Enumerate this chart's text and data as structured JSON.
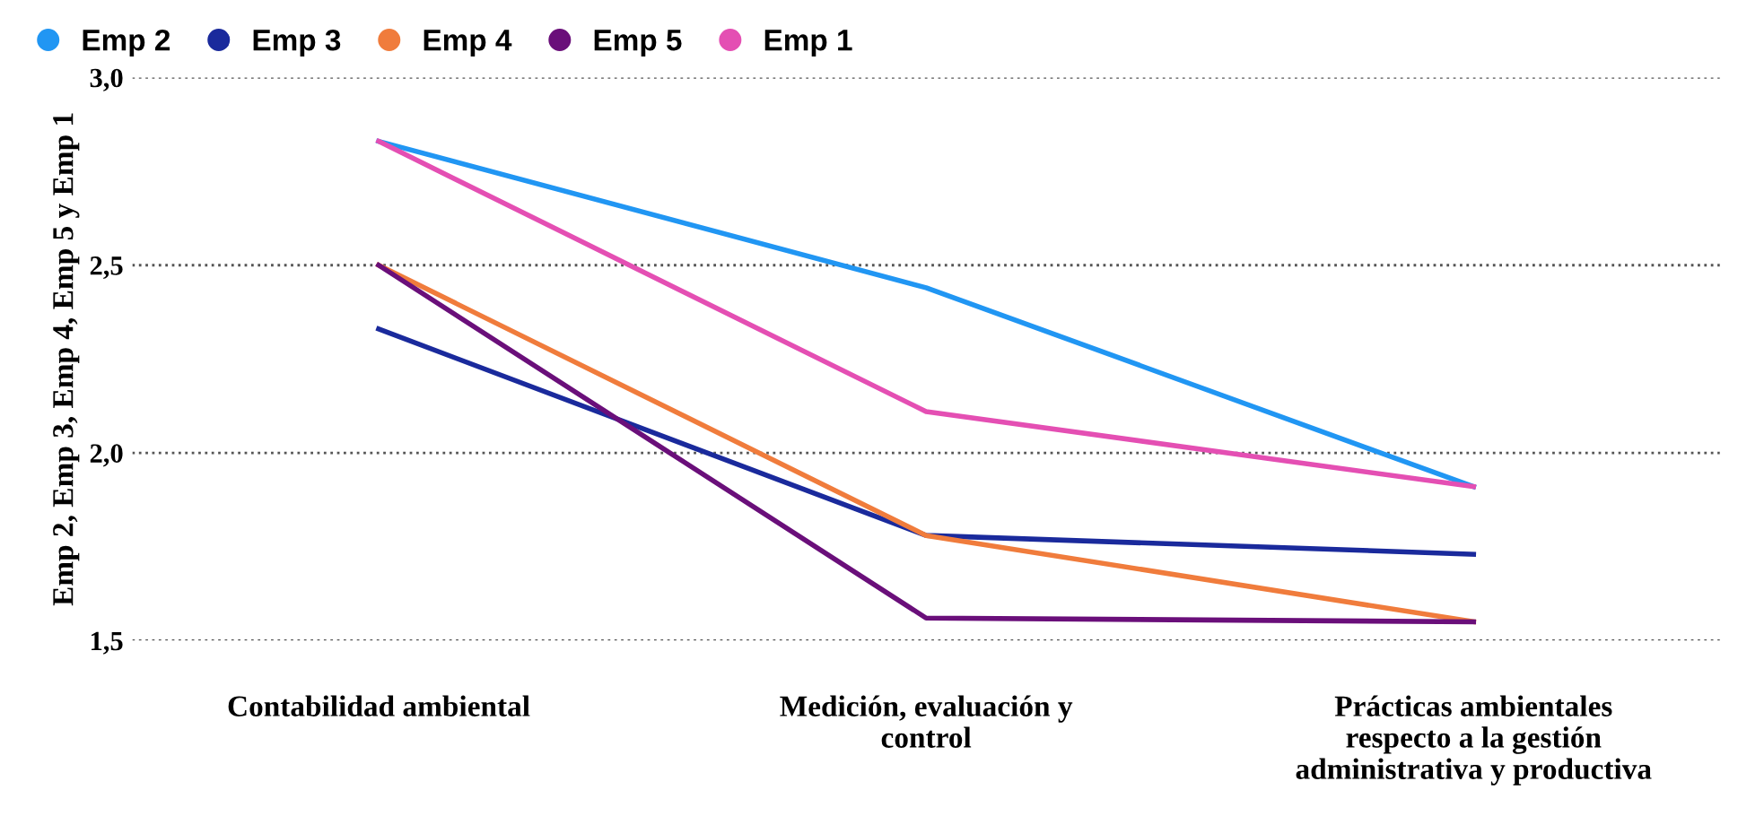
{
  "chart_data": {
    "type": "line",
    "ylabel": "Emp 2, Emp 3, Emp 4, Emp 5 y Emp 1",
    "categories": [
      "Contabilidad ambiental",
      "Medición, evaluación y\ncontrol",
      "Prácticas ambientales\nrespecto a la gestión\nadministrativa y productiva"
    ],
    "series": [
      {
        "name": "Emp 2",
        "color": "#2196f3",
        "values": [
          2.83,
          2.44,
          1.91
        ]
      },
      {
        "name": "Emp 3",
        "color": "#1a2a9c",
        "values": [
          2.33,
          1.78,
          1.73
        ]
      },
      {
        "name": "Emp 4",
        "color": "#f07c3c",
        "values": [
          2.5,
          1.78,
          1.55
        ]
      },
      {
        "name": "Emp 5",
        "color": "#6a0f7a",
        "values": [
          2.5,
          1.56,
          1.55
        ]
      },
      {
        "name": "Emp 1",
        "color": "#e44fb3",
        "values": [
          2.83,
          2.11,
          1.91
        ]
      }
    ],
    "ylim": [
      1.5,
      3.0
    ],
    "yticks": [
      {
        "value": 1.5,
        "label": "1,5"
      },
      {
        "value": 2.0,
        "label": "2,0"
      },
      {
        "value": 2.5,
        "label": "2,5"
      },
      {
        "value": 3.0,
        "label": "3,0"
      }
    ],
    "grid": "y",
    "legend": "top left",
    "marker": "none",
    "line_style": "solid"
  }
}
